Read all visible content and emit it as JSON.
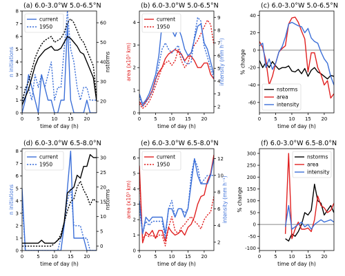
{
  "chart_data": [
    {
      "panel": "(a)",
      "title": "(a)  6.0-3.0°W 5.0-6.5°N",
      "type": "line",
      "xlabel": "time of day (h)",
      "ylabel": "n initiations",
      "ylabel_color": "#3b6fd8",
      "y2label": "nstorms",
      "xlim": [
        0,
        23
      ],
      "xticks": [
        0,
        5,
        10,
        15,
        20
      ],
      "ylim": [
        0,
        8
      ],
      "yticks": [
        0,
        1,
        2,
        3,
        4,
        5,
        6,
        7,
        8
      ],
      "y2lim": [
        14,
        66
      ],
      "y2ticks": [
        20,
        30,
        40,
        50,
        60
      ],
      "legend": {
        "position": "upper-left",
        "entries": [
          "current",
          "1950"
        ]
      },
      "x": [
        0,
        1,
        2,
        3,
        4,
        5,
        6,
        7,
        8,
        9,
        10,
        11,
        12,
        13,
        14,
        15,
        16,
        17,
        18,
        19,
        20,
        21,
        22,
        23
      ],
      "series": [
        {
          "name": "current",
          "axis": "left",
          "color": "#3b6fd8",
          "style": "solid",
          "values": [
            0,
            1,
            3,
            2,
            1,
            0,
            3,
            2,
            1,
            1,
            0,
            0,
            1,
            1,
            7,
            1,
            0,
            0,
            0,
            0,
            1,
            0,
            0,
            0
          ]
        },
        {
          "name": "1950",
          "axis": "left",
          "color": "#3b6fd8",
          "style": "dashed",
          "values": [
            0.5,
            2,
            2,
            1,
            3,
            2,
            3,
            2,
            3,
            4,
            1,
            2,
            2,
            5,
            8,
            5,
            4,
            2,
            1,
            2,
            2,
            1,
            1,
            1
          ]
        },
        {
          "name": "nstorms current",
          "axis": "right",
          "color": "#000000",
          "style": "solid",
          "values": [
            18,
            22,
            26,
            32,
            38,
            42,
            44,
            46,
            47,
            48,
            46,
            46,
            47,
            50,
            53,
            52,
            50,
            48,
            45,
            44,
            40,
            36,
            32,
            20
          ]
        },
        {
          "name": "nstorms 1950",
          "axis": "right",
          "color": "#000000",
          "style": "dashed",
          "values": [
            20,
            26,
            30,
            36,
            42,
            46,
            49,
            51,
            52,
            53,
            50,
            51,
            52,
            55,
            60,
            62,
            60,
            56,
            52,
            50,
            46,
            42,
            38,
            22
          ]
        }
      ]
    },
    {
      "panel": "(b)",
      "title": "(b)  6.0-3.0°W 5.0-6.5°N",
      "type": "line",
      "xlabel": "time of day (h)",
      "ylabel": "area (x10³ km)",
      "ylabel_color": "#e02020",
      "y2label": "intensity (mm h⁻¹)",
      "y2label_color": "#3b6fd8",
      "xlim": [
        0,
        23
      ],
      "xticks": [
        0,
        5,
        10,
        15,
        20
      ],
      "ylim": [
        0,
        4.5
      ],
      "yticks": [
        0,
        1,
        2,
        3,
        4
      ],
      "y2lim": [
        1.5,
        9.5
      ],
      "y2ticks": [
        2,
        3,
        4,
        5,
        6,
        7,
        8,
        9
      ],
      "legend": {
        "position": "upper-left",
        "entries": [
          "current",
          "1950"
        ]
      },
      "x": [
        0,
        1,
        2,
        3,
        4,
        5,
        6,
        7,
        8,
        9,
        10,
        11,
        12,
        13,
        14,
        15,
        16,
        17,
        18,
        19,
        20,
        21,
        22,
        23
      ],
      "series": [
        {
          "name": "current",
          "axis": "left",
          "color": "#e02020",
          "style": "solid",
          "values": [
            0.5,
            0.3,
            0.5,
            0.7,
            1.0,
            1.5,
            1.8,
            2.0,
            2.4,
            2.6,
            2.7,
            2.8,
            2.7,
            2.6,
            2.3,
            2.5,
            2.5,
            2.3,
            2.0,
            2.0,
            2.2,
            2.2,
            1.7,
            1.5
          ]
        },
        {
          "name": "1950",
          "axis": "left",
          "color": "#e02020",
          "style": "dashed",
          "values": [
            0.4,
            0.2,
            0.3,
            0.5,
            0.8,
            1.2,
            1.6,
            2.0,
            2.2,
            2.3,
            2.1,
            2.3,
            2.8,
            2.3,
            2.0,
            2.2,
            2.7,
            3.0,
            3.2,
            3.5,
            3.8,
            4.1,
            3.9,
            3.0
          ]
        },
        {
          "name": "intensity current",
          "axis": "right",
          "color": "#3b6fd8",
          "style": "solid",
          "values": [
            3.0,
            2.2,
            2.5,
            3.0,
            3.7,
            4.5,
            6.0,
            8.5,
            9.0,
            8.8,
            8.0,
            7.5,
            8.2,
            7.5,
            6.5,
            6.0,
            6.2,
            7.3,
            8.3,
            8.5,
            7.0,
            6.5,
            5.5,
            4.5
          ]
        },
        {
          "name": "intensity 1950",
          "axis": "right",
          "color": "#3b6fd8",
          "style": "dashed",
          "values": [
            2.8,
            2.0,
            2.3,
            2.7,
            3.2,
            4.0,
            5.3,
            6.5,
            7.0,
            6.5,
            6.2,
            6.5,
            6.8,
            6.0,
            5.5,
            5.3,
            5.5,
            7.5,
            9.0,
            8.7,
            6.7,
            5.9,
            5.0,
            4.2
          ]
        }
      ]
    },
    {
      "panel": "(c)",
      "title": "(c)  6.0-3.0°W 5.0-6.5°N",
      "type": "line",
      "xlabel": "time of day (h)",
      "ylabel": "% change",
      "xlim": [
        0,
        23
      ],
      "xticks": [
        0,
        5,
        10,
        15,
        20
      ],
      "ylim": [
        -72,
        45
      ],
      "yticks": [
        -60,
        -40,
        -20,
        0,
        20,
        40
      ],
      "zero_line": true,
      "legend": {
        "position": "lower-left",
        "entries": [
          "nstorms",
          "area",
          "intensity"
        ]
      },
      "x": [
        0,
        1,
        2,
        3,
        4,
        5,
        6,
        7,
        8,
        9,
        10,
        11,
        12,
        13,
        14,
        15,
        16,
        17,
        18,
        19,
        20,
        21,
        22,
        23
      ],
      "series": [
        {
          "name": "nstorms",
          "color": "#000000",
          "style": "solid",
          "values": [
            -12,
            -20,
            -14,
            -20,
            -13,
            -18,
            -22,
            -20,
            -20,
            -18,
            -24,
            -25,
            -22,
            -27,
            -21,
            -30,
            -23,
            -20,
            -25,
            -27,
            -30,
            -33,
            -29,
            -30
          ]
        },
        {
          "name": "area",
          "color": "#e02020",
          "style": "solid",
          "values": [
            10,
            3,
            -12,
            -40,
            -30,
            -15,
            -2,
            2,
            5,
            30,
            37,
            38,
            32,
            22,
            13,
            -25,
            -3,
            -3,
            -20,
            -28,
            -40,
            -35,
            -55,
            -50
          ]
        },
        {
          "name": "intensity",
          "color": "#3b6fd8",
          "style": "solid",
          "values": [
            5,
            8,
            -20,
            -10,
            -22,
            -15,
            -2,
            4,
            15,
            30,
            32,
            30,
            28,
            27,
            20,
            25,
            14,
            10,
            8,
            -2,
            -10,
            -15,
            -30,
            -40
          ]
        }
      ]
    },
    {
      "panel": "(d)",
      "title": "(d)  6.0-3.0°W 6.5-8.0°N",
      "type": "line",
      "xlabel": "time of day (h)",
      "ylabel": "n initiations",
      "ylabel_color": "#3b6fd8",
      "y2label": "nstorms",
      "xlim": [
        0,
        23
      ],
      "xticks": [
        0,
        5,
        10,
        15,
        20
      ],
      "ylim": [
        0,
        8.2
      ],
      "yticks": [
        0,
        1,
        2,
        3,
        4,
        5,
        6,
        7,
        8
      ],
      "y2lim": [
        -1.5,
        33
      ],
      "y2ticks": [
        0,
        5,
        10,
        15,
        20,
        25,
        30
      ],
      "legend": {
        "position": "upper-left",
        "entries": [
          "current",
          "1950"
        ]
      },
      "x": [
        0,
        1,
        2,
        3,
        4,
        5,
        6,
        7,
        8,
        9,
        10,
        11,
        12,
        13,
        14,
        15,
        16,
        17,
        18,
        19,
        20,
        21,
        22,
        23
      ],
      "series": [
        {
          "name": "current",
          "axis": "left",
          "color": "#3b6fd8",
          "style": "solid",
          "values": [
            5,
            0,
            0,
            0,
            0,
            0,
            0,
            0,
            0,
            0,
            0,
            0,
            0,
            2,
            5,
            8,
            1,
            1,
            1,
            1,
            0,
            0,
            0,
            0
          ]
        },
        {
          "name": "1950",
          "axis": "left",
          "color": "#3b6fd8",
          "style": "dashed",
          "values": [
            4,
            0,
            0,
            0,
            0,
            0,
            0,
            0,
            0,
            0,
            0,
            0,
            1,
            2,
            4,
            5,
            2,
            2,
            2,
            1,
            1,
            0,
            0,
            0
          ]
        },
        {
          "name": "nstorms current",
          "axis": "right",
          "color": "#000000",
          "style": "solid",
          "values": [
            1,
            1,
            1,
            1,
            1,
            1,
            2,
            1,
            1,
            1,
            1,
            2,
            3,
            8,
            18,
            19,
            20,
            24,
            23,
            27,
            27,
            31,
            30,
            30
          ]
        },
        {
          "name": "nstorms 1950",
          "axis": "right",
          "color": "#000000",
          "style": "dashed",
          "values": [
            0,
            0,
            0,
            0,
            0,
            0,
            0,
            0,
            0,
            0,
            1,
            2,
            4,
            8,
            12,
            15,
            16,
            20,
            22,
            19,
            17,
            14,
            16,
            15
          ]
        }
      ]
    },
    {
      "panel": "(e)",
      "title": "(e)  6.0-3.0°W 6.5-8.0°N",
      "type": "line",
      "xlabel": "time of day (h)",
      "ylabel": "area (x10³ km)",
      "ylabel_color": "#e02020",
      "y2label": "intensity (mm h⁻¹)",
      "y2label_color": "#3b6fd8",
      "xlim": [
        0,
        23
      ],
      "xticks": [
        0,
        5,
        10,
        15,
        20
      ],
      "ylim": [
        0,
        6.6
      ],
      "yticks": [
        0,
        1,
        2,
        3,
        4,
        5,
        6
      ],
      "y2lim": [
        1,
        13.2
      ],
      "y2ticks": [
        2,
        4,
        6,
        8,
        10,
        12
      ],
      "legend": {
        "position": "upper-left",
        "entries": [
          "current",
          "1950"
        ]
      },
      "x": [
        0,
        1,
        2,
        3,
        4,
        5,
        6,
        7,
        8,
        9,
        10,
        11,
        12,
        13,
        14,
        15,
        16,
        17,
        18,
        19,
        20,
        21,
        22,
        23
      ],
      "series": [
        {
          "name": "current",
          "axis": "left",
          "color": "#e02020",
          "style": "solid",
          "values": [
            5.5,
            0.5,
            1.2,
            1.0,
            1.3,
            0.8,
            1.3,
            1.3,
            0.6,
            1.5,
            1.2,
            1.0,
            1.1,
            1.3,
            1.0,
            1.5,
            1.7,
            2.2,
            3.0,
            3.5,
            3.6,
            4.5,
            5.0,
            6.2
          ]
        },
        {
          "name": "1950",
          "axis": "left",
          "color": "#e02020",
          "style": "dashed",
          "values": [
            5.0,
            0.8,
            1.0,
            0.9,
            1.0,
            0.8,
            1.0,
            1.0,
            0.3,
            1.5,
            2.2,
            1.3,
            1.1,
            1.5,
            1.7,
            2.0,
            2.2,
            1.9,
            1.7,
            1.4,
            2.0,
            2.3,
            2.5,
            3.5
          ]
        },
        {
          "name": "intensity current",
          "axis": "right",
          "color": "#3b6fd8",
          "style": "solid",
          "values": [
            7,
            3,
            5,
            4.5,
            5,
            5,
            5,
            5,
            3,
            6,
            6,
            5,
            6,
            6,
            5,
            6,
            9,
            12,
            10,
            9,
            9,
            9,
            10,
            12
          ]
        },
        {
          "name": "intensity 1950",
          "axis": "right",
          "color": "#3b6fd8",
          "style": "dashed",
          "values": [
            6,
            3,
            4.5,
            4,
            4.5,
            4.5,
            4.5,
            4.5,
            2.5,
            6,
            7,
            5,
            6,
            6,
            5.5,
            6,
            10,
            12,
            11,
            9,
            9.5,
            10,
            10,
            10
          ]
        }
      ]
    },
    {
      "panel": "(f)",
      "title": "(f)  6.0-3.0°W 6.5-8.0°N",
      "type": "line",
      "xlabel": "time of day (h)",
      "ylabel": "% change",
      "xlim": [
        0,
        23
      ],
      "xticks": [
        0,
        5,
        10,
        15,
        20
      ],
      "ylim": [
        -110,
        320
      ],
      "yticks": [
        -100,
        -50,
        0,
        50,
        100,
        150,
        200,
        250,
        300
      ],
      "zero_line": true,
      "legend": {
        "position": "upper-right",
        "entries": [
          "nstorms",
          "area",
          "intensity"
        ]
      },
      "x": [
        8,
        9,
        10,
        11,
        12,
        13,
        14,
        15,
        16,
        17,
        18,
        19,
        20,
        21,
        22,
        23
      ],
      "series": [
        {
          "name": "nstorms",
          "color": "#000000",
          "style": "solid",
          "values": [
            -60,
            -70,
            -40,
            -50,
            -30,
            0,
            50,
            40,
            60,
            170,
            100,
            90,
            40,
            60,
            80,
            50
          ]
        },
        {
          "name": "area",
          "color": "#e02020",
          "style": "solid",
          "values": [
            -40,
            300,
            -60,
            -20,
            10,
            -20,
            -20,
            -15,
            -30,
            20,
            120,
            80,
            70,
            50,
            60,
            90
          ]
        },
        {
          "name": "intensity",
          "color": "#3b6fd8",
          "style": "solid",
          "values": [
            -10,
            80,
            -20,
            -10,
            0,
            10,
            -10,
            0,
            -20,
            0,
            10,
            20,
            10,
            15,
            20,
            10
          ]
        }
      ]
    }
  ]
}
